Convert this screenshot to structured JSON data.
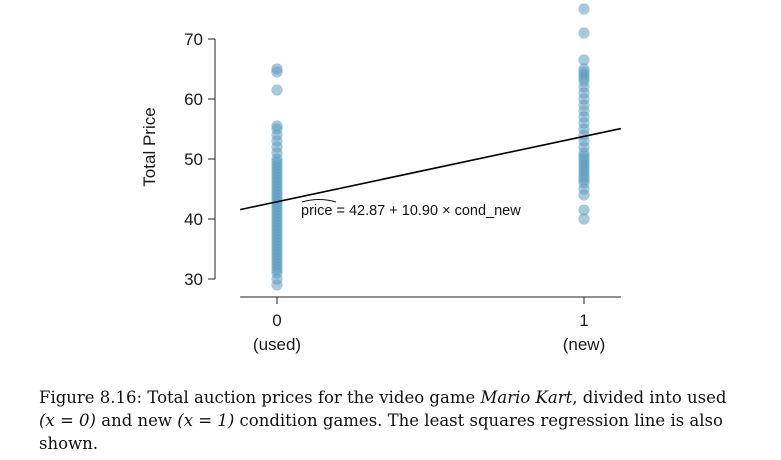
{
  "chart_data": {
    "type": "scatter",
    "ylabel": "Total Price",
    "ylim": [
      27,
      75.5
    ],
    "yticks": [
      30,
      40,
      50,
      60,
      70
    ],
    "xlim": [
      -0.12,
      1.12
    ],
    "categories": [
      {
        "x": 0,
        "value_label": "0",
        "name_label": "(used)"
      },
      {
        "x": 1,
        "value_label": "1",
        "name_label": "(new)"
      }
    ],
    "points_used": [
      29,
      30,
      31,
      31.5,
      32,
      32.5,
      33,
      33.5,
      34,
      34.5,
      35,
      35.5,
      36,
      36.5,
      37,
      37.5,
      38,
      38.5,
      39,
      39.5,
      40,
      40.5,
      41,
      41.5,
      42,
      42.5,
      43,
      43.5,
      44,
      44.5,
      45,
      45.5,
      46,
      46.5,
      47,
      47.5,
      48,
      48.5,
      49,
      49.5,
      50,
      51,
      52,
      53,
      54,
      55,
      55.5,
      61.5,
      64.5,
      65
    ],
    "points_new": [
      40,
      41.5,
      44,
      45,
      46,
      46.5,
      47,
      47.5,
      48,
      48.5,
      49,
      49.5,
      50,
      50.5,
      51,
      52,
      53,
      54,
      55,
      56,
      57,
      58,
      59,
      60,
      61,
      62,
      63,
      63.5,
      64,
      64.5,
      65,
      66.5,
      71,
      75
    ],
    "regression": {
      "intercept": 42.87,
      "slope": 10.9,
      "x_range": [
        -0.12,
        1.12
      ],
      "equation_label": "price = 42.87 + 10.90 × cond_new"
    },
    "point_color": "#5c9dc0",
    "line_color": "#000000"
  },
  "caption": {
    "figure_label": "Figure 8.16:",
    "text_before": "Total auction prices for the video game ",
    "game_title": "Mario Kart",
    "text_middle": ", divided into used",
    "used_math": "(x = 0)",
    "text_after_used": " and new ",
    "new_math": "(x = 1)",
    "text_end": " condition games. The least squares regression line is also shown."
  }
}
